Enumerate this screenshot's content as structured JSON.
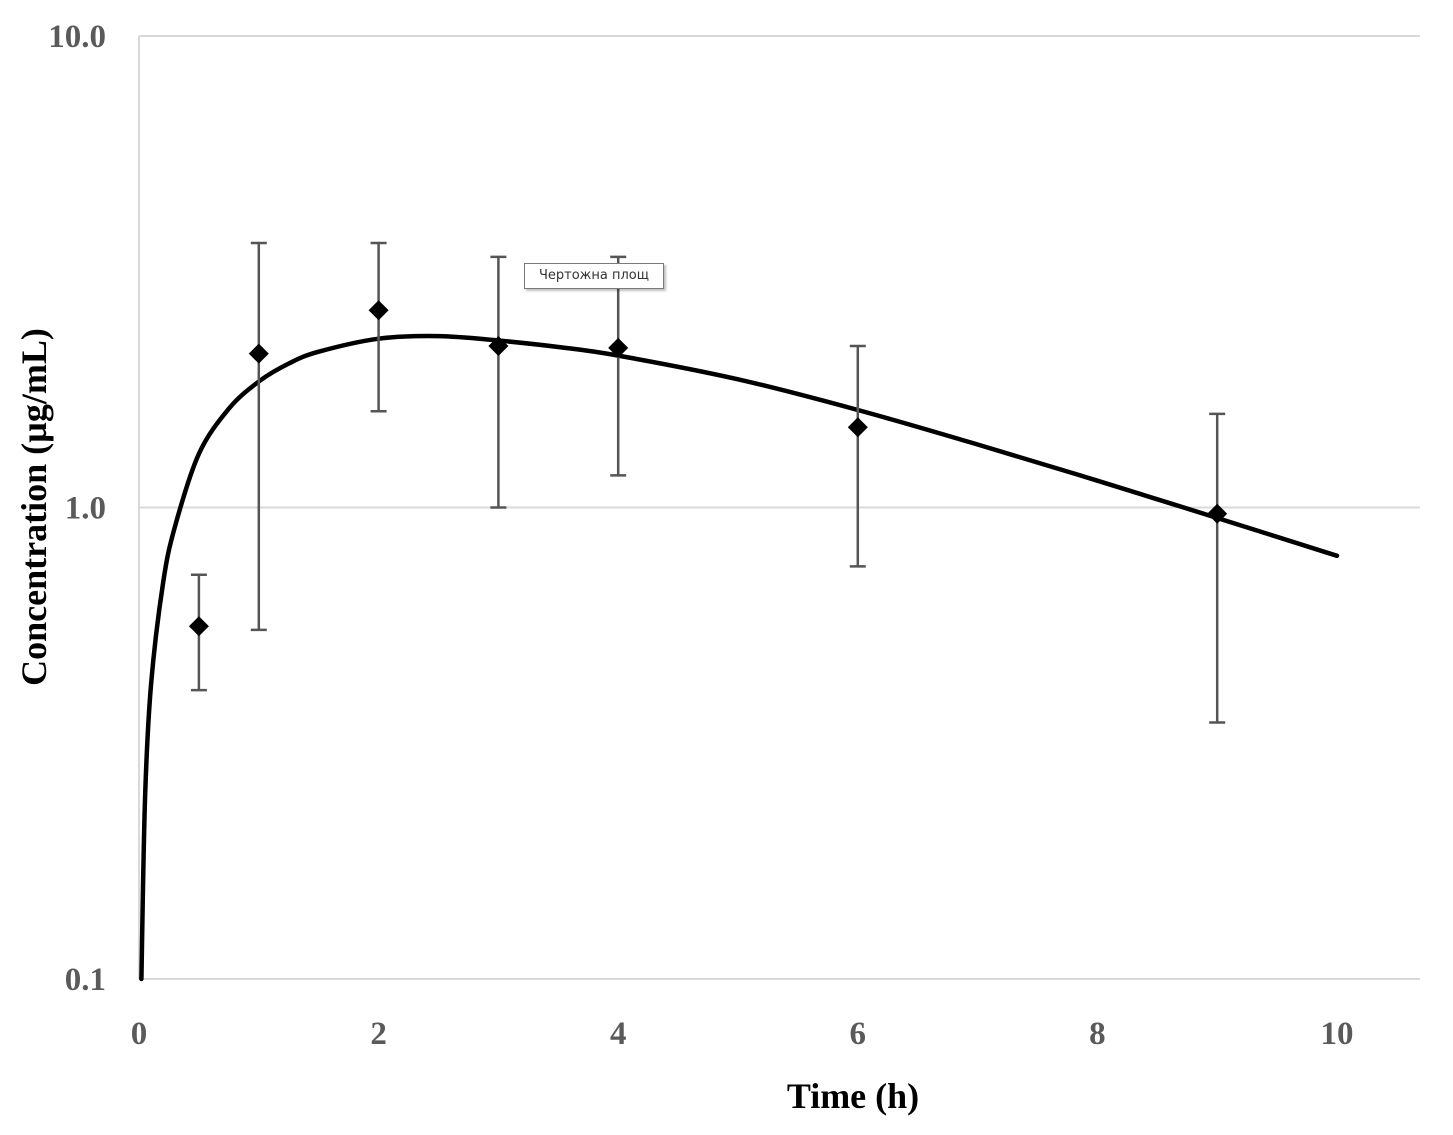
{
  "chart_data": {
    "type": "scatter",
    "title": "",
    "xlabel": "Time (h)",
    "ylabel": "Concentration (µg/mL)",
    "xlim": [
      0,
      10
    ],
    "ylim": [
      0.1,
      10.0
    ],
    "yscale": "log",
    "grid": "horizontal",
    "x_ticks": [
      0,
      2,
      4,
      6,
      8,
      10
    ],
    "x_tick_labels": [
      "0",
      "2",
      "4",
      "6",
      "8",
      "10"
    ],
    "y_ticks": [
      0.1,
      1.0,
      10.0
    ],
    "y_tick_labels": [
      "0.1",
      "1.0",
      "10.0"
    ],
    "series": [
      {
        "kind": "observed",
        "marker": "diamond",
        "color": "#000000",
        "points": [
          {
            "x": 0.5,
            "y": 0.56,
            "y_low": 0.41,
            "y_high": 0.72
          },
          {
            "x": 1,
            "y": 2.12,
            "y_low": 0.55,
            "y_high": 3.64
          },
          {
            "x": 2,
            "y": 2.62,
            "y_low": 1.6,
            "y_high": 3.64
          },
          {
            "x": 3,
            "y": 2.2,
            "y_low": 1.0,
            "y_high": 3.4
          },
          {
            "x": 4,
            "y": 2.18,
            "y_low": 1.17,
            "y_high": 3.4
          },
          {
            "x": 6,
            "y": 1.48,
            "y_low": 0.75,
            "y_high": 2.2
          },
          {
            "x": 9,
            "y": 0.97,
            "y_low": 0.35,
            "y_high": 1.58
          }
        ]
      },
      {
        "kind": "fitted",
        "line": "solid",
        "color": "#000000",
        "points": [
          {
            "x": 0.02,
            "y": 0.1
          },
          {
            "x": 0.05,
            "y": 0.24
          },
          {
            "x": 0.1,
            "y": 0.42
          },
          {
            "x": 0.2,
            "y": 0.69
          },
          {
            "x": 0.3,
            "y": 0.91
          },
          {
            "x": 0.5,
            "y": 1.3
          },
          {
            "x": 0.75,
            "y": 1.62
          },
          {
            "x": 1.0,
            "y": 1.85
          },
          {
            "x": 1.25,
            "y": 2.02
          },
          {
            "x": 1.5,
            "y": 2.14
          },
          {
            "x": 2.0,
            "y": 2.28
          },
          {
            "x": 2.5,
            "y": 2.31
          },
          {
            "x": 3.0,
            "y": 2.26
          },
          {
            "x": 3.5,
            "y": 2.19
          },
          {
            "x": 4.0,
            "y": 2.1
          },
          {
            "x": 5.0,
            "y": 1.87
          },
          {
            "x": 6.0,
            "y": 1.61
          },
          {
            "x": 7.0,
            "y": 1.36
          },
          {
            "x": 8.0,
            "y": 1.14
          },
          {
            "x": 9.0,
            "y": 0.95
          },
          {
            "x": 10.0,
            "y": 0.79
          }
        ]
      }
    ]
  },
  "overlay": {
    "tooltip_text": "Чертожна площ"
  }
}
